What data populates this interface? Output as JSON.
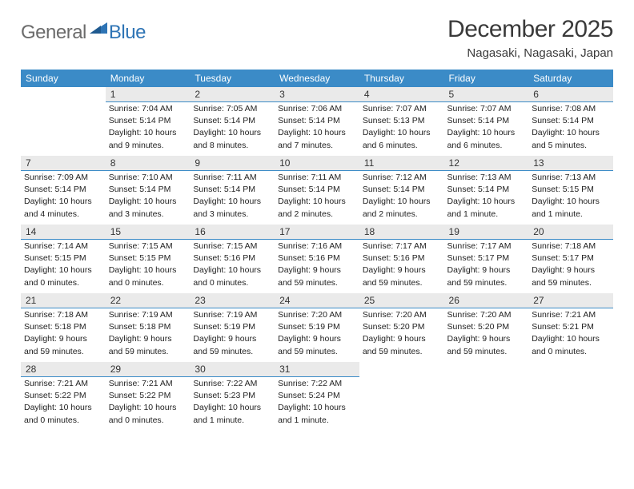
{
  "logo": {
    "word1": "General",
    "word2": "Blue"
  },
  "title": "December 2025",
  "location": "Nagasaki, Nagasaki, Japan",
  "colors": {
    "header_bg": "#3b8bc7",
    "header_fg": "#ffffff",
    "daynum_bg": "#eaeaea",
    "day_border": "#3b8bc7",
    "logo_gray": "#6b6b6b",
    "logo_blue": "#2e74b5",
    "body_bg": "#ffffff"
  },
  "weekdays": [
    "Sunday",
    "Monday",
    "Tuesday",
    "Wednesday",
    "Thursday",
    "Friday",
    "Saturday"
  ],
  "weeks": [
    [
      null,
      {
        "n": "1",
        "sr": "Sunrise: 7:04 AM",
        "ss": "Sunset: 5:14 PM",
        "d1": "Daylight: 10 hours",
        "d2": "and 9 minutes."
      },
      {
        "n": "2",
        "sr": "Sunrise: 7:05 AM",
        "ss": "Sunset: 5:14 PM",
        "d1": "Daylight: 10 hours",
        "d2": "and 8 minutes."
      },
      {
        "n": "3",
        "sr": "Sunrise: 7:06 AM",
        "ss": "Sunset: 5:14 PM",
        "d1": "Daylight: 10 hours",
        "d2": "and 7 minutes."
      },
      {
        "n": "4",
        "sr": "Sunrise: 7:07 AM",
        "ss": "Sunset: 5:13 PM",
        "d1": "Daylight: 10 hours",
        "d2": "and 6 minutes."
      },
      {
        "n": "5",
        "sr": "Sunrise: 7:07 AM",
        "ss": "Sunset: 5:14 PM",
        "d1": "Daylight: 10 hours",
        "d2": "and 6 minutes."
      },
      {
        "n": "6",
        "sr": "Sunrise: 7:08 AM",
        "ss": "Sunset: 5:14 PM",
        "d1": "Daylight: 10 hours",
        "d2": "and 5 minutes."
      }
    ],
    [
      {
        "n": "7",
        "sr": "Sunrise: 7:09 AM",
        "ss": "Sunset: 5:14 PM",
        "d1": "Daylight: 10 hours",
        "d2": "and 4 minutes."
      },
      {
        "n": "8",
        "sr": "Sunrise: 7:10 AM",
        "ss": "Sunset: 5:14 PM",
        "d1": "Daylight: 10 hours",
        "d2": "and 3 minutes."
      },
      {
        "n": "9",
        "sr": "Sunrise: 7:11 AM",
        "ss": "Sunset: 5:14 PM",
        "d1": "Daylight: 10 hours",
        "d2": "and 3 minutes."
      },
      {
        "n": "10",
        "sr": "Sunrise: 7:11 AM",
        "ss": "Sunset: 5:14 PM",
        "d1": "Daylight: 10 hours",
        "d2": "and 2 minutes."
      },
      {
        "n": "11",
        "sr": "Sunrise: 7:12 AM",
        "ss": "Sunset: 5:14 PM",
        "d1": "Daylight: 10 hours",
        "d2": "and 2 minutes."
      },
      {
        "n": "12",
        "sr": "Sunrise: 7:13 AM",
        "ss": "Sunset: 5:14 PM",
        "d1": "Daylight: 10 hours",
        "d2": "and 1 minute."
      },
      {
        "n": "13",
        "sr": "Sunrise: 7:13 AM",
        "ss": "Sunset: 5:15 PM",
        "d1": "Daylight: 10 hours",
        "d2": "and 1 minute."
      }
    ],
    [
      {
        "n": "14",
        "sr": "Sunrise: 7:14 AM",
        "ss": "Sunset: 5:15 PM",
        "d1": "Daylight: 10 hours",
        "d2": "and 0 minutes."
      },
      {
        "n": "15",
        "sr": "Sunrise: 7:15 AM",
        "ss": "Sunset: 5:15 PM",
        "d1": "Daylight: 10 hours",
        "d2": "and 0 minutes."
      },
      {
        "n": "16",
        "sr": "Sunrise: 7:15 AM",
        "ss": "Sunset: 5:16 PM",
        "d1": "Daylight: 10 hours",
        "d2": "and 0 minutes."
      },
      {
        "n": "17",
        "sr": "Sunrise: 7:16 AM",
        "ss": "Sunset: 5:16 PM",
        "d1": "Daylight: 9 hours",
        "d2": "and 59 minutes."
      },
      {
        "n": "18",
        "sr": "Sunrise: 7:17 AM",
        "ss": "Sunset: 5:16 PM",
        "d1": "Daylight: 9 hours",
        "d2": "and 59 minutes."
      },
      {
        "n": "19",
        "sr": "Sunrise: 7:17 AM",
        "ss": "Sunset: 5:17 PM",
        "d1": "Daylight: 9 hours",
        "d2": "and 59 minutes."
      },
      {
        "n": "20",
        "sr": "Sunrise: 7:18 AM",
        "ss": "Sunset: 5:17 PM",
        "d1": "Daylight: 9 hours",
        "d2": "and 59 minutes."
      }
    ],
    [
      {
        "n": "21",
        "sr": "Sunrise: 7:18 AM",
        "ss": "Sunset: 5:18 PM",
        "d1": "Daylight: 9 hours",
        "d2": "and 59 minutes."
      },
      {
        "n": "22",
        "sr": "Sunrise: 7:19 AM",
        "ss": "Sunset: 5:18 PM",
        "d1": "Daylight: 9 hours",
        "d2": "and 59 minutes."
      },
      {
        "n": "23",
        "sr": "Sunrise: 7:19 AM",
        "ss": "Sunset: 5:19 PM",
        "d1": "Daylight: 9 hours",
        "d2": "and 59 minutes."
      },
      {
        "n": "24",
        "sr": "Sunrise: 7:20 AM",
        "ss": "Sunset: 5:19 PM",
        "d1": "Daylight: 9 hours",
        "d2": "and 59 minutes."
      },
      {
        "n": "25",
        "sr": "Sunrise: 7:20 AM",
        "ss": "Sunset: 5:20 PM",
        "d1": "Daylight: 9 hours",
        "d2": "and 59 minutes."
      },
      {
        "n": "26",
        "sr": "Sunrise: 7:20 AM",
        "ss": "Sunset: 5:20 PM",
        "d1": "Daylight: 9 hours",
        "d2": "and 59 minutes."
      },
      {
        "n": "27",
        "sr": "Sunrise: 7:21 AM",
        "ss": "Sunset: 5:21 PM",
        "d1": "Daylight: 10 hours",
        "d2": "and 0 minutes."
      }
    ],
    [
      {
        "n": "28",
        "sr": "Sunrise: 7:21 AM",
        "ss": "Sunset: 5:22 PM",
        "d1": "Daylight: 10 hours",
        "d2": "and 0 minutes."
      },
      {
        "n": "29",
        "sr": "Sunrise: 7:21 AM",
        "ss": "Sunset: 5:22 PM",
        "d1": "Daylight: 10 hours",
        "d2": "and 0 minutes."
      },
      {
        "n": "30",
        "sr": "Sunrise: 7:22 AM",
        "ss": "Sunset: 5:23 PM",
        "d1": "Daylight: 10 hours",
        "d2": "and 1 minute."
      },
      {
        "n": "31",
        "sr": "Sunrise: 7:22 AM",
        "ss": "Sunset: 5:24 PM",
        "d1": "Daylight: 10 hours",
        "d2": "and 1 minute."
      },
      null,
      null,
      null
    ]
  ]
}
